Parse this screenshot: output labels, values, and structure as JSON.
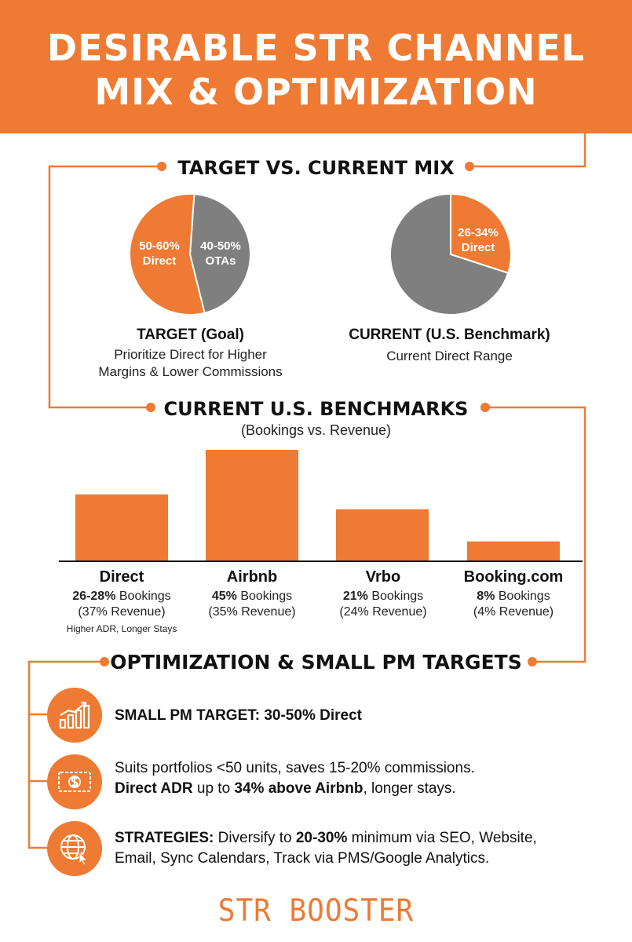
{
  "header": {
    "title_line1": "DESIRABLE STR CHANNEL",
    "title_line2": "MIX & OPTIMIZATION"
  },
  "colors": {
    "accent": "#ee7a33",
    "ota_gray": "#7f7f7f",
    "text": "#111111"
  },
  "mix_section": {
    "title": "TARGET VS. CURRENT MIX",
    "target": {
      "slice_direct_label": "50-60%",
      "slice_direct_sub": "Direct",
      "slice_ota_label": "40-50%",
      "slice_ota_sub": "OTAs",
      "heading": "TARGET (Goal)",
      "desc_line1": "Prioritize Direct for Higher",
      "desc_line2": "Margins & Lower Commissions"
    },
    "current": {
      "slice_direct_label": "26-34%",
      "slice_direct_sub": "Direct",
      "heading": "CURRENT (U.S. Benchmark)",
      "desc_line1": "Current Direct Range"
    }
  },
  "chart_data": [
    {
      "type": "pie",
      "title": "TARGET (Goal)",
      "categories": [
        "Direct",
        "OTAs"
      ],
      "values": [
        55,
        45
      ],
      "labels": [
        "50-60% Direct",
        "40-50% OTAs"
      ]
    },
    {
      "type": "pie",
      "title": "CURRENT (U.S. Benchmark)",
      "categories": [
        "Direct",
        "Other"
      ],
      "values": [
        30,
        70
      ],
      "labels": [
        "26-34% Direct",
        ""
      ]
    },
    {
      "type": "bar",
      "title": "CURRENT U.S. BENCHMARKS",
      "subtitle": "(Bookings vs. Revenue)",
      "categories": [
        "Direct",
        "Airbnb",
        "Vrbo",
        "Booking.com"
      ],
      "values": [
        27,
        45,
        21,
        8
      ],
      "ylim": [
        0,
        45
      ],
      "grid": false
    }
  ],
  "benchmarks": {
    "title": "CURRENT U.S. BENCHMARKS",
    "subtitle": "(Bookings vs. Revenue)",
    "items": [
      {
        "name": "Direct",
        "bookings": "26-28%",
        "bookings_word": " Bookings",
        "revenue": "(37% Revenue)",
        "note": "Higher ADR, Longer Stays"
      },
      {
        "name": "Airbnb",
        "bookings": "45%",
        "bookings_word": " Bookings",
        "revenue": "(35% Revenue)",
        "note": ""
      },
      {
        "name": "Vrbo",
        "bookings": "21%",
        "bookings_word": " Bookings",
        "revenue": "(24% Revenue)",
        "note": ""
      },
      {
        "name": "Booking.com",
        "bookings": "8%",
        "bookings_word": " Bookings",
        "revenue": "(4% Revenue)",
        "note": ""
      }
    ]
  },
  "optimization": {
    "title": "OPTIMIZATION & SMALL PM TARGETS",
    "items": [
      {
        "icon": "growth-chart-icon",
        "strong": "SMALL PM TARGET: 30-50% Direct"
      },
      {
        "icon": "cash-icon",
        "line1": "Suits portfolios <50 units, saves 15-20% commissions.",
        "l2_a": "Direct ADR",
        "l2_b": " up to ",
        "l2_c": "34% above Airbnb",
        "l2_d": ", longer stays."
      },
      {
        "icon": "globe-cursor-icon",
        "l1_a": "STRATEGIES:",
        "l1_b": " Diversify to ",
        "l1_c": "20-30%",
        "l1_d": " minimum via SEO, Website,",
        "line2": "Email, Sync Calendars, Track via PMS/Google Analytics."
      }
    ]
  },
  "footer": {
    "brand": "STR BOOSTER"
  }
}
